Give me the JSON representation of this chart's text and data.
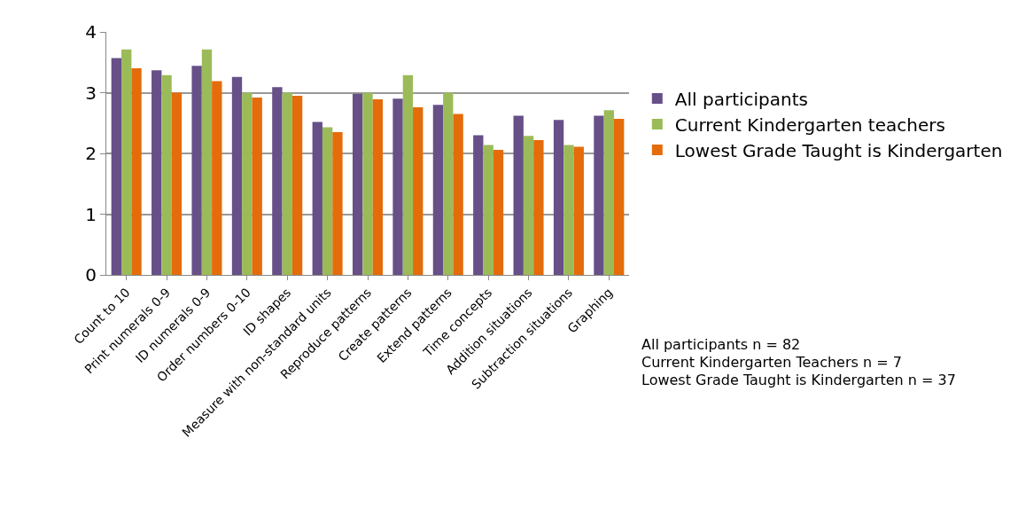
{
  "chart_data": {
    "type": "bar",
    "categories": [
      "Count to 10",
      "Print numerals 0-9",
      "ID numerals 0-9",
      "Order numbers 0-10",
      "ID shapes",
      "Measure with non-standard units",
      "Reproduce patterns",
      "Create patterns",
      "Extend patterns",
      "Time concepts",
      "Addition situations",
      "Subtraction situations",
      "Graphing"
    ],
    "series": [
      {
        "name": "All participants",
        "color": "#674f88",
        "values": [
          3.57,
          3.37,
          3.44,
          3.26,
          3.09,
          2.52,
          2.98,
          2.9,
          2.8,
          2.3,
          2.62,
          2.55,
          2.62
        ]
      },
      {
        "name": "Current Kindergarten teachers",
        "color": "#9bbb59",
        "values": [
          3.71,
          3.29,
          3.71,
          3.0,
          3.0,
          2.43,
          3.0,
          3.29,
          3.0,
          2.14,
          2.29,
          2.14,
          2.71
        ]
      },
      {
        "name": "Lowest Grade Taught is Kindergarten",
        "color": "#e46c0a",
        "values": [
          3.4,
          3.0,
          3.19,
          2.92,
          2.95,
          2.35,
          2.89,
          2.76,
          2.65,
          2.06,
          2.22,
          2.11,
          2.57
        ]
      }
    ],
    "ylim": [
      0,
      4
    ],
    "yticks": [
      0,
      1,
      2,
      3,
      4
    ],
    "grid": "y",
    "legend": "right",
    "annotations": [
      "All participants n = 82",
      "Current Kindergarten Teachers n = 7",
      "Lowest Grade Taught is Kindergarten n = 37"
    ]
  }
}
